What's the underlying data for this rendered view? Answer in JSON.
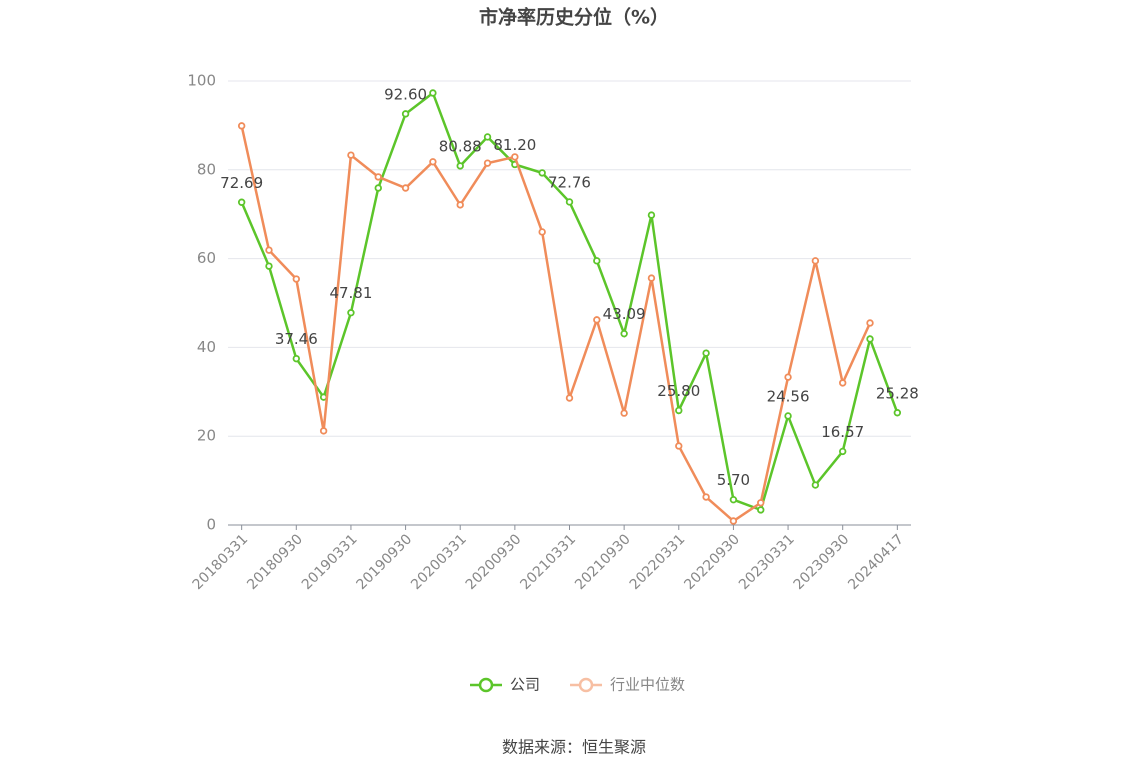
{
  "chart_data": {
    "type": "line",
    "title": "市净率历史分位（%）",
    "categories": [
      "20180331",
      null,
      "20180930",
      null,
      "20190331",
      null,
      "20190930",
      null,
      "20200331",
      null,
      "20200930",
      null,
      "20210331",
      null,
      "20210930",
      null,
      "20220331",
      null,
      "20220930",
      null,
      "20230331",
      null,
      "20230930",
      null,
      "20240417"
    ],
    "series": [
      {
        "name": "公司",
        "color": "#5cc52a",
        "values": [
          72.69,
          58.3,
          37.46,
          28.8,
          47.81,
          75.9,
          92.6,
          97.3,
          80.88,
          87.4,
          81.2,
          79.3,
          72.76,
          59.5,
          43.09,
          69.8,
          25.8,
          38.7,
          5.7,
          3.4,
          24.56,
          9.0,
          16.57,
          41.9,
          25.28
        ],
        "value_labels": [
          "72.69",
          null,
          "37.46",
          null,
          "47.81",
          null,
          "92.60",
          null,
          "80.88",
          null,
          "81.20",
          null,
          "72.76",
          null,
          "43.09",
          null,
          "25.80",
          null,
          "5.70",
          null,
          "24.56",
          null,
          "16.57",
          null,
          "25.28"
        ]
      },
      {
        "name": "行业中位数",
        "color": "#f08c5a",
        "values": [
          89.9,
          61.9,
          55.4,
          21.2,
          83.3,
          78.4,
          75.9,
          81.8,
          72.1,
          81.5,
          82.9,
          66.0,
          28.6,
          46.2,
          25.2,
          55.6,
          17.8,
          6.3,
          0.9,
          5.0,
          33.3,
          59.5,
          32.0,
          45.5,
          null
        ]
      }
    ],
    "ylim": [
      0,
      100
    ],
    "yticks": [
      0,
      20,
      40,
      60,
      80,
      100
    ],
    "grid": true,
    "legend": "bottom",
    "source": "数据来源：恒生聚源"
  }
}
